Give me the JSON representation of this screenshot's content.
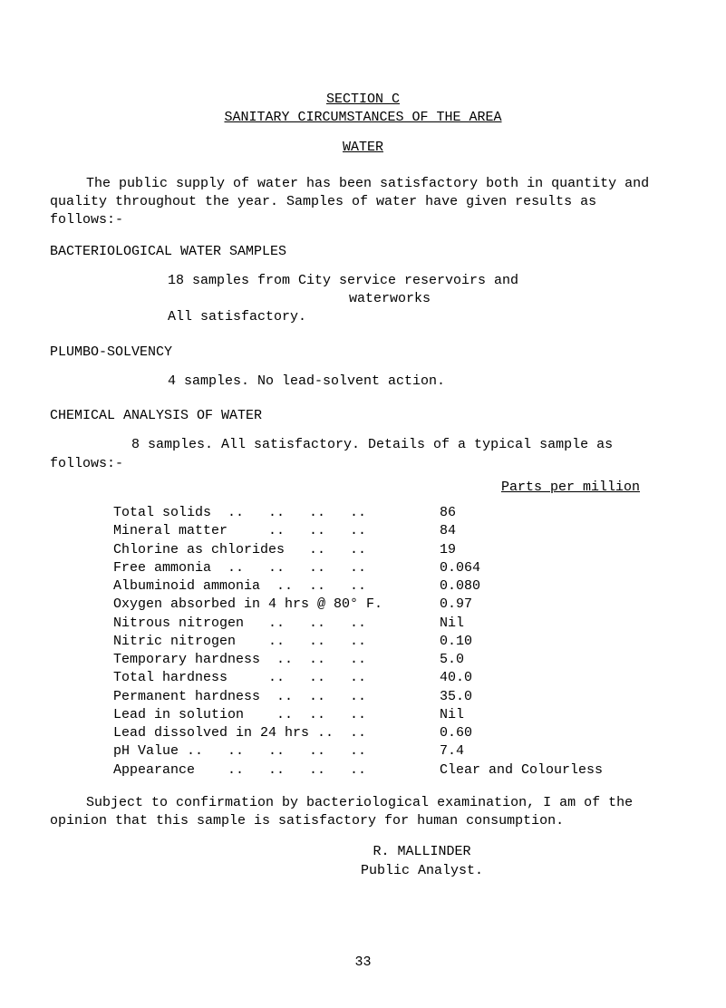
{
  "heading": {
    "section": "SECTION  C",
    "title": "SANITARY CIRCUMSTANCES OF THE AREA",
    "water": "WATER"
  },
  "intro": "The public supply of water has been satisfactory both in quantity and quality throughout the year.  Samples of water have given results as follows:-",
  "bacteriological": {
    "heading": "BACTERIOLOGICAL WATER SAMPLES",
    "line1": "18 samples from City service reservoirs and",
    "line2": "waterworks",
    "line3": "All satisfactory."
  },
  "plumbo": {
    "heading": "PLUMBO-SOLVENCY",
    "line1": "4 samples.  No lead-solvent action."
  },
  "chemical": {
    "heading": "CHEMICAL ANALYSIS OF WATER",
    "line1": "8 samples.  All satisfactory.  Details of a typical sample as",
    "follows": "follows:-"
  },
  "table": {
    "header": "Parts per million",
    "rows": [
      {
        "label": "Total solids  ..   ..   ..   ..",
        "value": "86"
      },
      {
        "label": "Mineral matter     ..   ..   ..",
        "value": "84"
      },
      {
        "label": "Chlorine as chlorides   ..   ..",
        "value": "19"
      },
      {
        "label": "Free ammonia  ..   ..   ..   ..",
        "value": "0.064"
      },
      {
        "label": "Albuminoid ammonia  ..  ..   ..",
        "value": "0.080"
      },
      {
        "label": "Oxygen absorbed in 4 hrs @ 80° F.",
        "value": "0.97"
      },
      {
        "label": "Nitrous nitrogen   ..   ..   ..",
        "value": "Nil"
      },
      {
        "label": "Nitric nitrogen    ..   ..   ..",
        "value": "0.10"
      },
      {
        "label": "Temporary hardness  ..  ..   ..",
        "value": "5.0"
      },
      {
        "label": "Total hardness     ..   ..   ..",
        "value": "40.0"
      },
      {
        "label": "Permanent hardness  ..  ..   ..",
        "value": "35.0"
      },
      {
        "label": "Lead in solution    ..  ..   ..",
        "value": "Nil"
      },
      {
        "label": "Lead dissolved in 24 hrs ..  ..",
        "value": "0.60"
      },
      {
        "label": "pH Value ..   ..   ..   ..   ..",
        "value": "7.4"
      },
      {
        "label": "Appearance    ..   ..   ..   ..",
        "value": "Clear and Colourless"
      }
    ]
  },
  "conclusion": "Subject to confirmation by bacteriological examination, I am of the opinion that this sample is satisfactory for human consumption.",
  "analyst": {
    "name": "R. MALLINDER",
    "title": "Public Analyst."
  },
  "page": "33"
}
